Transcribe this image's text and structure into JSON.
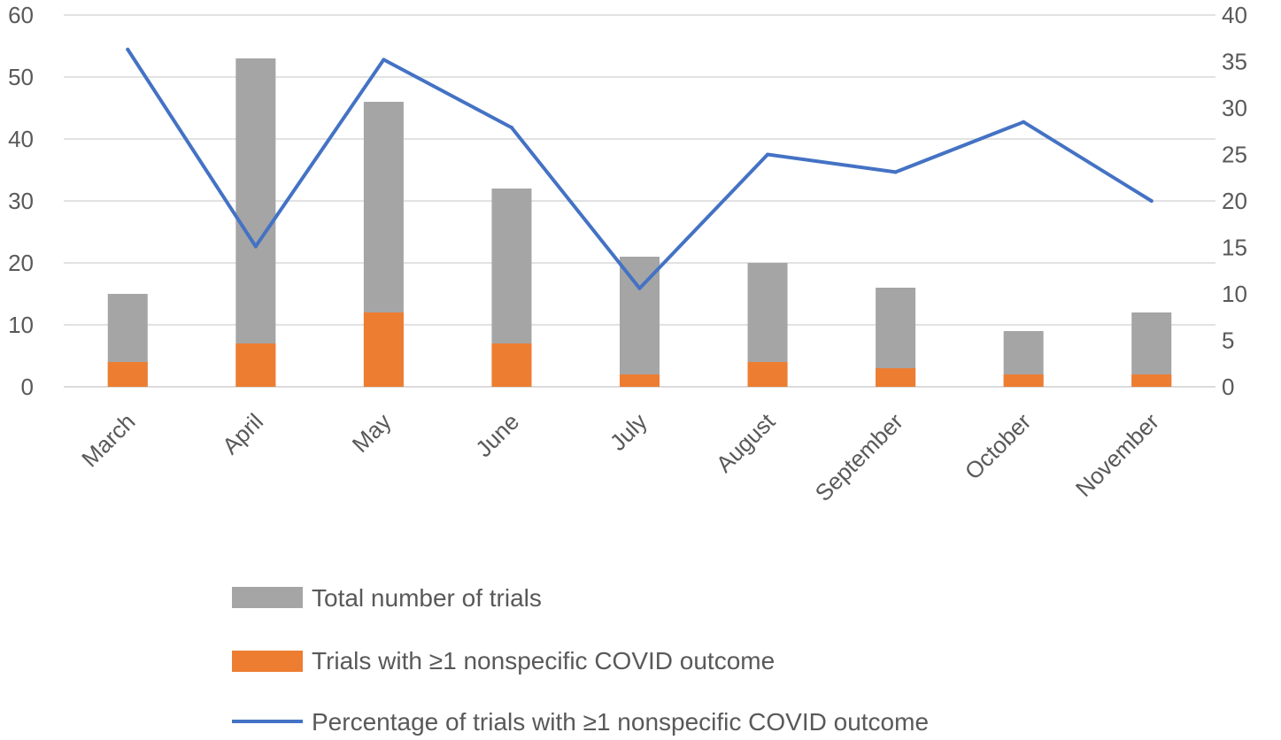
{
  "chart_data": {
    "type": "bar",
    "subtype": "stacked-bar-with-line-secondary-axis",
    "title": "",
    "xlabel": "",
    "ylabel": "",
    "y2label": "",
    "categories": [
      "March",
      "April",
      "May",
      "June",
      "July",
      "August",
      "September",
      "October",
      "November"
    ],
    "ylim": [
      0,
      60
    ],
    "yticks": [
      0,
      10,
      20,
      30,
      40,
      50,
      60
    ],
    "y2lim": [
      0,
      40
    ],
    "y2ticks": [
      0,
      5,
      10,
      15,
      20,
      25,
      30,
      35,
      40
    ],
    "grid": "horizontal",
    "legend_position": "bottom",
    "series": [
      {
        "name": "Total number of trials",
        "type": "bar",
        "axis": "left",
        "color": "#a5a5a5",
        "values": [
          15,
          53,
          46,
          32,
          21,
          20,
          16,
          9,
          12
        ]
      },
      {
        "name": "Trials with ≥1 nonspecific COVID outcome",
        "type": "bar",
        "axis": "left",
        "color": "#ed7d31",
        "values": [
          4,
          7,
          12,
          7,
          2,
          4,
          3,
          2,
          2
        ]
      },
      {
        "name": "Percentage of trials with ≥1 nonspecific COVID outcome",
        "type": "line",
        "axis": "right",
        "color": "#4472c4",
        "values": [
          36.3,
          15.1,
          35.2,
          27.9,
          10.6,
          25.0,
          23.1,
          28.5,
          20.0
        ]
      }
    ]
  }
}
